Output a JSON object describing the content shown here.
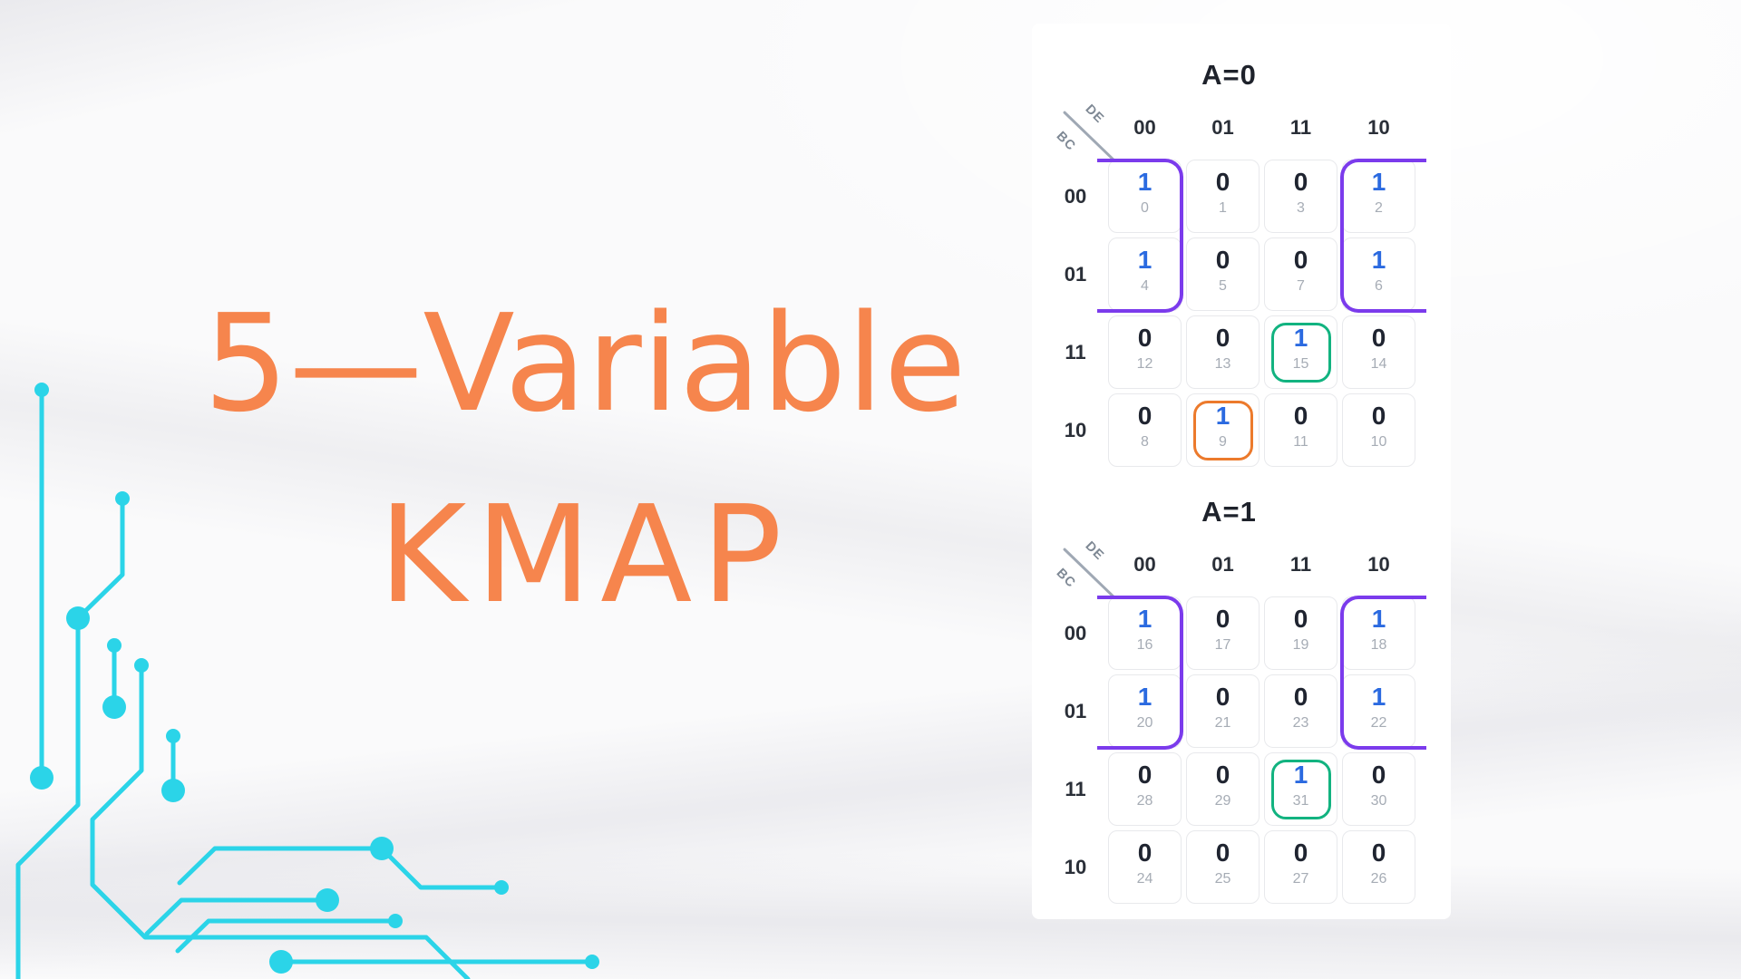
{
  "hero": {
    "line1": "5—Variable",
    "line2": "KMAP"
  },
  "maps": [
    {
      "title": "A=0",
      "corner_top": "DE",
      "corner_bottom": "BC",
      "col_labels": [
        "00",
        "01",
        "11",
        "10"
      ],
      "row_labels": [
        "00",
        "01",
        "11",
        "10"
      ],
      "rows": [
        [
          {
            "v": "1",
            "m": "0"
          },
          {
            "v": "0",
            "m": "1"
          },
          {
            "v": "0",
            "m": "3"
          },
          {
            "v": "1",
            "m": "2"
          }
        ],
        [
          {
            "v": "1",
            "m": "4"
          },
          {
            "v": "0",
            "m": "5"
          },
          {
            "v": "0",
            "m": "7"
          },
          {
            "v": "1",
            "m": "6"
          }
        ],
        [
          {
            "v": "0",
            "m": "12"
          },
          {
            "v": "0",
            "m": "13"
          },
          {
            "v": "1",
            "m": "15"
          },
          {
            "v": "0",
            "m": "14"
          }
        ],
        [
          {
            "v": "0",
            "m": "8"
          },
          {
            "v": "1",
            "m": "9"
          },
          {
            "v": "0",
            "m": "11"
          },
          {
            "v": "0",
            "m": "10"
          }
        ]
      ],
      "groups": [
        {
          "shape": "wrap-left",
          "color": "group_purple",
          "cells": "0,4"
        },
        {
          "shape": "wrap-right",
          "color": "group_purple",
          "cells": "2,6"
        },
        {
          "shape": "ring",
          "color": "group_green",
          "row": 2,
          "col": 2,
          "cells": "15"
        },
        {
          "shape": "ring",
          "color": "group_orange",
          "row": 3,
          "col": 1,
          "cells": "9"
        }
      ]
    },
    {
      "title": "A=1",
      "corner_top": "DE",
      "corner_bottom": "BC",
      "col_labels": [
        "00",
        "01",
        "11",
        "10"
      ],
      "row_labels": [
        "00",
        "01",
        "11",
        "10"
      ],
      "rows": [
        [
          {
            "v": "1",
            "m": "16"
          },
          {
            "v": "0",
            "m": "17"
          },
          {
            "v": "0",
            "m": "19"
          },
          {
            "v": "1",
            "m": "18"
          }
        ],
        [
          {
            "v": "1",
            "m": "20"
          },
          {
            "v": "0",
            "m": "21"
          },
          {
            "v": "0",
            "m": "23"
          },
          {
            "v": "1",
            "m": "22"
          }
        ],
        [
          {
            "v": "0",
            "m": "28"
          },
          {
            "v": "0",
            "m": "29"
          },
          {
            "v": "1",
            "m": "31"
          },
          {
            "v": "0",
            "m": "30"
          }
        ],
        [
          {
            "v": "0",
            "m": "24"
          },
          {
            "v": "0",
            "m": "25"
          },
          {
            "v": "0",
            "m": "27"
          },
          {
            "v": "0",
            "m": "26"
          }
        ]
      ],
      "groups": [
        {
          "shape": "wrap-left",
          "color": "group_purple",
          "cells": "16,20"
        },
        {
          "shape": "wrap-right",
          "color": "group_purple",
          "cells": "18,22"
        },
        {
          "shape": "ring",
          "color": "group_green",
          "row": 2,
          "col": 2,
          "cells": "31"
        }
      ]
    }
  ],
  "colors": {
    "title_orange": "#F6854D",
    "value_one_blue": "#2B6AE0",
    "value_zero_dark": "#1F2430",
    "minterm_gray": "#A6ACB5",
    "cell_border": "#E8E9EC",
    "group_purple": "#7B3BEC",
    "group_green": "#12B380",
    "group_orange": "#EC7A2C",
    "circuit_cyan": "#2BD4E8",
    "panel_white": "#FFFFFF"
  }
}
